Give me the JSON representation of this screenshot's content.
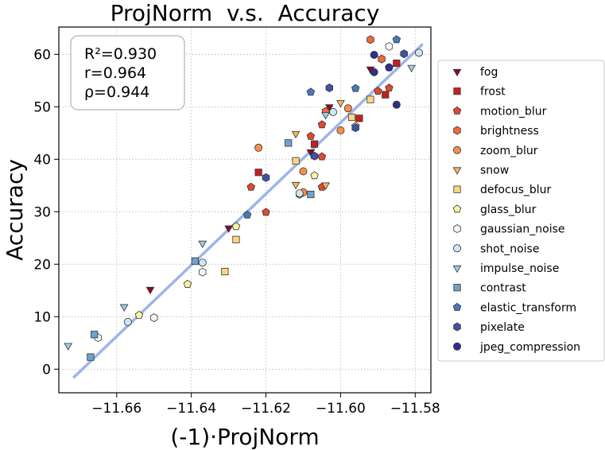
{
  "chart_data": {
    "type": "scatter",
    "title": "ProjNorm  v.s.  Accuracy",
    "xlabel": "(-1)·ProjNorm",
    "ylabel": "Accuracy",
    "xlim": [
      -11.6755,
      -11.5758
    ],
    "ylim": [
      -4.5,
      65.2
    ],
    "xticks": [
      -11.66,
      -11.64,
      -11.62,
      -11.6,
      -11.58
    ],
    "xtick_labels": [
      "−11.66",
      "−11.64",
      "−11.62",
      "−11.60",
      "−11.58"
    ],
    "yticks": [
      0,
      10,
      20,
      30,
      40,
      50,
      60
    ],
    "ytick_labels": [
      "0",
      "10",
      "20",
      "30",
      "40",
      "50",
      "60"
    ],
    "grid": true,
    "stats": [
      "R²=0.930",
      "r=0.964",
      "ρ=0.944"
    ],
    "fit_line": {
      "x": [
        -11.6714,
        -11.5782
      ],
      "y": [
        -1.5,
        61.8
      ],
      "color": "#9fb4e8"
    },
    "legend_position": "outside-right",
    "series": [
      {
        "name": "fog",
        "marker": "triangle-down",
        "color": "#8b0a1e",
        "points": [
          [
            -11.651,
            15.2
          ],
          [
            -11.63,
            26.9
          ],
          [
            -11.608,
            41.4
          ],
          [
            -11.603,
            50.0
          ],
          [
            -11.592,
            57.2
          ]
        ]
      },
      {
        "name": "frost",
        "marker": "square",
        "color": "#c5201e",
        "points": [
          [
            -11.622,
            37.5
          ],
          [
            -11.607,
            42.9
          ],
          [
            -11.595,
            47.8
          ],
          [
            -11.588,
            52.3
          ],
          [
            -11.585,
            58.3
          ]
        ]
      },
      {
        "name": "motion_blur",
        "marker": "pentagon",
        "color": "#e04a2e",
        "points": [
          [
            -11.624,
            34.7
          ],
          [
            -11.62,
            29.9
          ],
          [
            -11.608,
            44.4
          ],
          [
            -11.605,
            46.6
          ],
          [
            -11.605,
            40.5
          ],
          [
            -11.605,
            34.7
          ],
          [
            -11.587,
            53.6
          ],
          [
            -11.59,
            53.0
          ]
        ]
      },
      {
        "name": "brightness",
        "marker": "hexagon",
        "color": "#ee6a3a",
        "points": [
          [
            -11.592,
            62.8
          ],
          [
            -11.589,
            59.1
          ],
          [
            -11.604,
            49.1
          ]
        ]
      },
      {
        "name": "zoom_blur",
        "marker": "circle",
        "color": "#f4904b",
        "points": [
          [
            -11.622,
            42.2
          ],
          [
            -11.61,
            37.7
          ],
          [
            -11.61,
            33.7
          ],
          [
            -11.6,
            45.5
          ],
          [
            -11.598,
            49.7
          ]
        ]
      },
      {
        "name": "snow",
        "marker": "triangle-down",
        "color": "#f9b45c",
        "points": [
          [
            -11.612,
            35.2
          ],
          [
            -11.612,
            44.9
          ],
          [
            -11.604,
            35.1
          ],
          [
            -11.6,
            50.8
          ]
        ]
      },
      {
        "name": "defocus_blur",
        "marker": "square",
        "color": "#fdd77f",
        "points": [
          [
            -11.631,
            18.6
          ],
          [
            -11.628,
            24.7
          ],
          [
            -11.612,
            39.7
          ],
          [
            -11.597,
            48.0
          ],
          [
            -11.592,
            51.4
          ]
        ]
      },
      {
        "name": "glass_blur",
        "marker": "pentagon",
        "color": "#fbf3a3",
        "points": [
          [
            -11.641,
            16.2
          ],
          [
            -11.654,
            10.3
          ],
          [
            -11.628,
            27.2
          ],
          [
            -11.607,
            36.9
          ],
          [
            -11.596,
            46.3
          ]
        ]
      },
      {
        "name": "gaussian_noise",
        "marker": "hexagon",
        "color": "#f3f9f2",
        "points": [
          [
            -11.665,
            6.0
          ],
          [
            -11.65,
            9.8
          ],
          [
            -11.637,
            18.5
          ],
          [
            -11.611,
            33.3
          ],
          [
            -11.587,
            61.5
          ]
        ]
      },
      {
        "name": "shot_noise",
        "marker": "circle",
        "color": "#cae9f4",
        "points": [
          [
            -11.657,
            9.0
          ],
          [
            -11.637,
            20.3
          ],
          [
            -11.611,
            33.5
          ],
          [
            -11.602,
            49.0
          ],
          [
            -11.579,
            60.3
          ]
        ]
      },
      {
        "name": "impulse_noise",
        "marker": "triangle-down",
        "color": "#9ccde4",
        "points": [
          [
            -11.673,
            4.5
          ],
          [
            -11.658,
            11.9
          ],
          [
            -11.637,
            24.0
          ],
          [
            -11.604,
            48.5
          ],
          [
            -11.581,
            57.5
          ]
        ]
      },
      {
        "name": "contrast",
        "marker": "square",
        "color": "#6ea2cd",
        "points": [
          [
            -11.667,
            2.3
          ],
          [
            -11.666,
            6.6
          ],
          [
            -11.639,
            20.6
          ],
          [
            -11.614,
            43.1
          ],
          [
            -11.608,
            33.3
          ]
        ]
      },
      {
        "name": "elastic_transform",
        "marker": "pentagon",
        "color": "#4a79b7",
        "points": [
          [
            -11.625,
            29.4
          ],
          [
            -11.608,
            52.8
          ],
          [
            -11.596,
            53.5
          ],
          [
            -11.587,
            57.5
          ],
          [
            -11.585,
            62.8
          ]
        ]
      },
      {
        "name": "pixelate",
        "marker": "hexagon",
        "color": "#3b54a4",
        "points": [
          [
            -11.62,
            36.5
          ],
          [
            -11.607,
            40.6
          ],
          [
            -11.603,
            53.6
          ],
          [
            -11.596,
            46.0
          ],
          [
            -11.583,
            60.1
          ]
        ]
      },
      {
        "name": "jpeg_compression",
        "marker": "circle",
        "color": "#2e2f8e",
        "points": [
          [
            -11.591,
            59.9
          ],
          [
            -11.591,
            56.6
          ],
          [
            -11.587,
            57.5
          ],
          [
            -11.585,
            50.4
          ]
        ]
      }
    ]
  }
}
